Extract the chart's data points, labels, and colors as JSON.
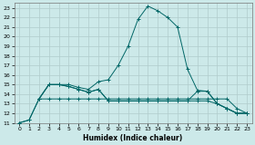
{
  "xlabel": "Humidex (Indice chaleur)",
  "bg_color": "#cce9e9",
  "grid_color": "#b0cccc",
  "line_color": "#006666",
  "xlim": [
    -0.5,
    23.5
  ],
  "ylim": [
    11,
    23.5
  ],
  "xticks": [
    0,
    1,
    2,
    3,
    4,
    5,
    6,
    7,
    8,
    9,
    10,
    11,
    12,
    13,
    14,
    15,
    16,
    17,
    18,
    19,
    20,
    21,
    22,
    23
  ],
  "yticks": [
    11,
    12,
    13,
    14,
    15,
    16,
    17,
    18,
    19,
    20,
    21,
    22,
    23
  ],
  "series": [
    {
      "x": [
        0,
        1,
        2,
        3,
        4,
        5,
        6,
        7,
        8,
        9,
        10,
        11,
        12,
        13,
        14,
        15,
        16,
        17,
        18,
        19,
        20,
        21,
        22,
        23
      ],
      "y": [
        11,
        11.3,
        13.5,
        13.5,
        13.5,
        13.5,
        13.5,
        13.5,
        13.5,
        13.5,
        13.5,
        13.5,
        13.5,
        13.5,
        13.5,
        13.5,
        13.5,
        13.5,
        13.5,
        13.5,
        13.5,
        13.5,
        12.5,
        12.0
      ]
    },
    {
      "x": [
        0,
        1,
        2,
        3,
        4,
        5,
        6,
        7,
        8,
        9,
        10,
        11,
        12,
        13,
        14,
        15,
        16,
        17,
        18,
        19,
        20,
        21,
        22,
        23
      ],
      "y": [
        11,
        11.3,
        13.5,
        15.0,
        15.0,
        15.0,
        14.7,
        14.5,
        15.3,
        15.5,
        17.0,
        19.0,
        21.8,
        23.2,
        22.7,
        22.0,
        21.0,
        16.6,
        14.4,
        14.3,
        13.0,
        12.5,
        12.0,
        12.0
      ]
    },
    {
      "x": [
        2,
        3,
        4,
        5,
        6,
        7,
        8,
        9,
        10,
        11,
        12,
        13,
        14,
        15,
        16,
        17,
        18,
        19,
        20,
        21,
        22,
        23
      ],
      "y": [
        13.5,
        15.0,
        15.0,
        14.8,
        14.5,
        14.2,
        14.5,
        13.3,
        13.3,
        13.3,
        13.3,
        13.3,
        13.3,
        13.3,
        13.3,
        13.3,
        14.3,
        14.3,
        13.0,
        12.5,
        12.0,
        12.0
      ]
    },
    {
      "x": [
        2,
        3,
        4,
        5,
        6,
        7,
        8,
        9,
        10,
        11,
        12,
        13,
        14,
        15,
        16,
        17,
        18,
        19,
        20,
        21,
        22,
        23
      ],
      "y": [
        13.5,
        15.0,
        15.0,
        14.8,
        14.5,
        14.2,
        14.5,
        13.3,
        13.3,
        13.3,
        13.3,
        13.3,
        13.3,
        13.3,
        13.3,
        13.3,
        13.3,
        13.3,
        13.0,
        12.5,
        12.0,
        12.0
      ]
    }
  ]
}
